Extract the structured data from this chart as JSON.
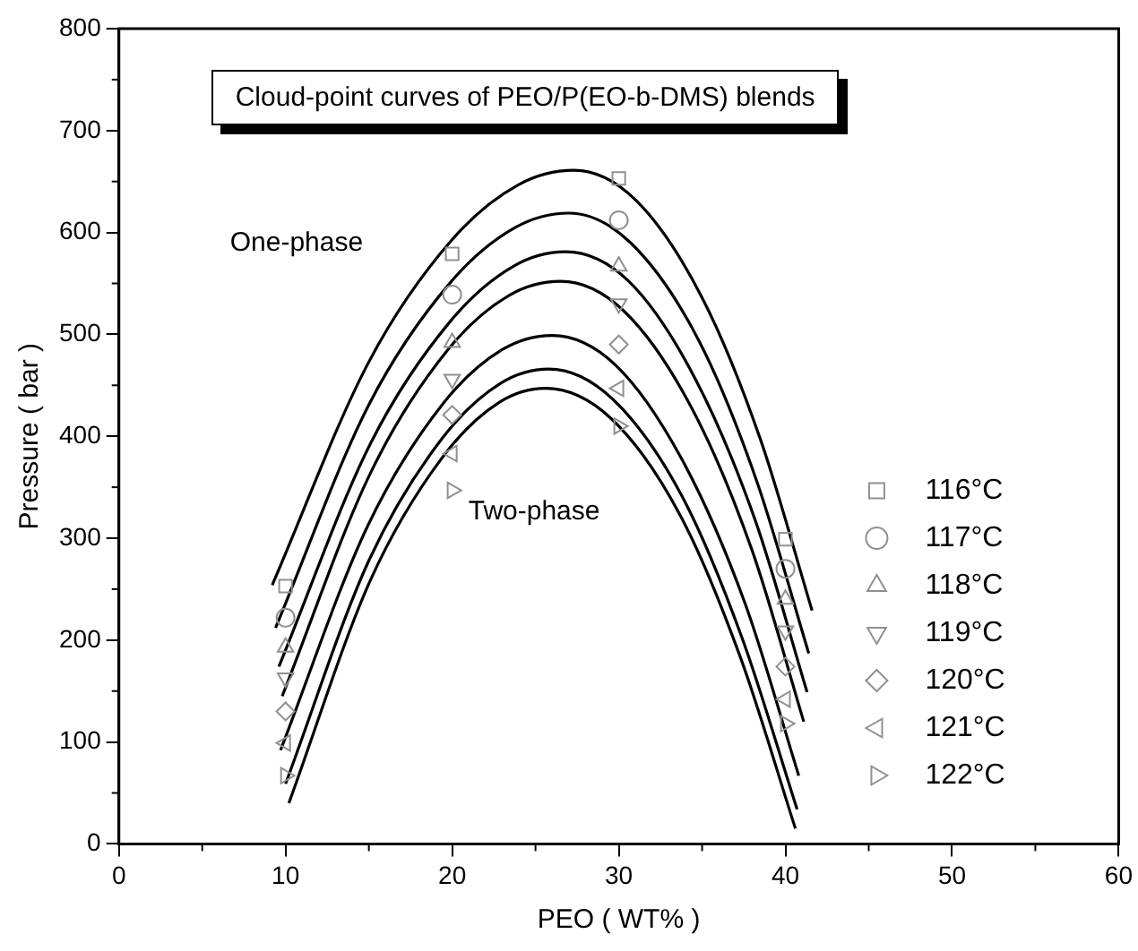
{
  "chart_data": {
    "type": "scatter",
    "title": "Cloud-point curves of PEO/P(EO-b-DMS) blends",
    "xlabel": "PEO ( WT% )",
    "ylabel": "Pressure ( bar )",
    "annotations": [
      "One-phase",
      "Two-phase"
    ],
    "xlim": [
      0,
      60
    ],
    "xticks": [
      0,
      10,
      20,
      30,
      40,
      50,
      60
    ],
    "ylim": [
      0,
      800
    ],
    "yticks": [
      0,
      100,
      200,
      300,
      400,
      500,
      600,
      700,
      800
    ],
    "grid": false,
    "legend": "right",
    "series": [
      {
        "name": "116°C",
        "color": "#909090",
        "marker": "square",
        "x": [
          10,
          20,
          30,
          40
        ],
        "values": [
          253,
          579,
          653,
          299
        ]
      },
      {
        "name": "117°C",
        "color": "#909090",
        "marker": "circle",
        "x": [
          10,
          20,
          30,
          40
        ],
        "values": [
          222,
          539,
          612,
          270
        ]
      },
      {
        "name": "118°C",
        "color": "#909090",
        "marker": "triangle",
        "x": [
          10,
          20,
          30,
          40
        ],
        "values": [
          193,
          492,
          567,
          240
        ]
      },
      {
        "name": "119°C",
        "color": "#909090",
        "marker": "triangle-down",
        "x": [
          10,
          20,
          30,
          40
        ],
        "values": [
          163,
          456,
          530,
          209
        ]
      },
      {
        "name": "120°C",
        "color": "#909090",
        "marker": "diamond",
        "x": [
          10,
          20,
          30,
          40
        ],
        "values": [
          130,
          421,
          490,
          174
        ]
      },
      {
        "name": "121°C",
        "color": "#909090",
        "marker": "triangle-left",
        "x": [
          10,
          20,
          30,
          40
        ],
        "values": [
          99,
          383,
          447,
          142
        ]
      },
      {
        "name": "122°C",
        "color": "#909090",
        "marker": "triangle-right",
        "x": [
          10,
          20,
          30,
          40
        ],
        "values": [
          67,
          347,
          410,
          118
        ]
      },
      {
        "type": "line",
        "color": "#000000",
        "marker": "none",
        "x": [
          9.2,
          15.0,
          20.0,
          24.0,
          27.3,
          31.0,
          35.0,
          38.5,
          41.6
        ],
        "values": [
          254,
          473,
          593,
          647,
          661,
          632,
          536,
          397,
          229
        ]
      },
      {
        "type": "line",
        "color": "#000000",
        "marker": "none",
        "x": [
          9.4,
          15.0,
          19.9,
          23.8,
          27.0,
          30.7,
          34.8,
          38.3,
          41.4
        ],
        "values": [
          212,
          431,
          551,
          605,
          619,
          590,
          494,
          355,
          187
        ]
      },
      {
        "type": "line",
        "color": "#000000",
        "marker": "none",
        "x": [
          9.6,
          15.1,
          19.9,
          23.7,
          26.8,
          30.6,
          34.6,
          38.2,
          41.3
        ],
        "values": [
          174,
          393,
          513,
          567,
          581,
          552,
          456,
          317,
          149
        ]
      },
      {
        "type": "line",
        "color": "#000000",
        "marker": "none",
        "x": [
          9.8,
          15.1,
          19.7,
          23.4,
          26.5,
          30.3,
          34.4,
          38.0,
          41.1
        ],
        "values": [
          145,
          364,
          484,
          538,
          552,
          523,
          427,
          288,
          120
        ]
      },
      {
        "type": "line",
        "color": "#000000",
        "marker": "none",
        "x": [
          9.7,
          14.9,
          19.4,
          23.0,
          26.0,
          29.8,
          33.9,
          37.6,
          40.8
        ],
        "values": [
          92,
          311,
          431,
          485,
          499,
          470,
          374,
          235,
          67
        ]
      },
      {
        "type": "line",
        "color": "#000000",
        "marker": "none",
        "x": [
          10.0,
          15.0,
          19.4,
          22.9,
          25.8,
          29.6,
          33.8,
          37.4,
          40.7
        ],
        "values": [
          59,
          278,
          398,
          452,
          466,
          437,
          341,
          202,
          34
        ]
      },
      {
        "type": "line",
        "color": "#000000",
        "marker": "none",
        "x": [
          10.2,
          15.1,
          19.4,
          22.8,
          25.6,
          29.5,
          33.7,
          37.3,
          40.6
        ],
        "values": [
          40,
          259,
          379,
          433,
          447,
          418,
          322,
          183,
          15
        ]
      }
    ]
  }
}
